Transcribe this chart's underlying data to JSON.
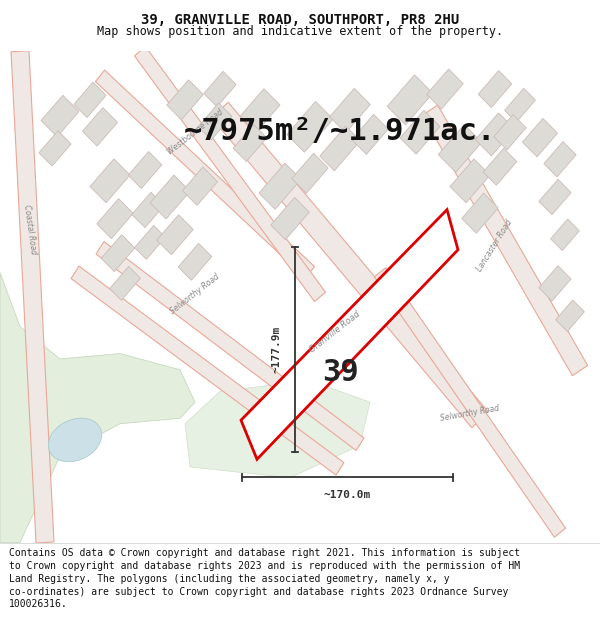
{
  "title_line1": "39, GRANVILLE ROAD, SOUTHPORT, PR8 2HU",
  "title_line2": "Map shows position and indicative extent of the property.",
  "area_text": "~7975m²/~1.971ac.",
  "property_number": "39",
  "dim_horizontal": "~170.0m",
  "dim_vertical": "~177.9m",
  "footer_text": "Contains OS data © Crown copyright and database right 2021. This information is subject to Crown copyright and database rights 2023 and is reproduced with the permission of HM Land Registry. The polygons (including the associated geometry, namely x, y co-ordinates) are subject to Crown copyright and database rights 2023 Ordnance Survey 100026316.",
  "map_bg": "#f7f5f2",
  "road_fill": "#f0e8e4",
  "road_edge": "#e8a898",
  "property_fill": "#ffffff",
  "property_edge": "#dd0000",
  "building_fill": "#dddbd6",
  "building_edge": "#ccbcb8",
  "green_fill": "#deecd8",
  "green_edge": "#c0d4b8",
  "water_fill": "#cce0e8",
  "water_edge": "#aacccc",
  "title_bg": "#ffffff",
  "footer_bg": "#ffffff",
  "dim_color": "#333333",
  "road_label_color": "#888888",
  "title_fontsize": 10,
  "subtitle_fontsize": 8.5,
  "area_fontsize": 22,
  "number_fontsize": 22,
  "dim_fontsize": 8,
  "road_label_fontsize": 5.5,
  "footer_fontsize": 7
}
